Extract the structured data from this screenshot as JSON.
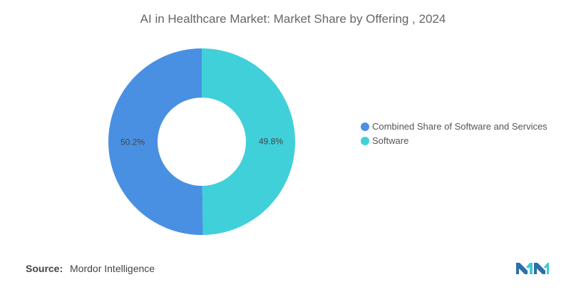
{
  "chart_data": {
    "type": "pie",
    "donut": true,
    "title": "AI in Healthcare Market: Market Share by Offering , 2024",
    "categories": [
      "Combined Share of Software and Services",
      "Software"
    ],
    "values": [
      50.2,
      49.8
    ],
    "value_labels": [
      "50.2%",
      "49.8%"
    ],
    "colors": [
      "#4A90E2",
      "#40D0DA"
    ],
    "legend_position": "right"
  },
  "source": {
    "label": "Source:",
    "value": "Mordor Intelligence"
  },
  "logo": {
    "colors": [
      "#2E6FA8",
      "#40C9D6"
    ]
  }
}
